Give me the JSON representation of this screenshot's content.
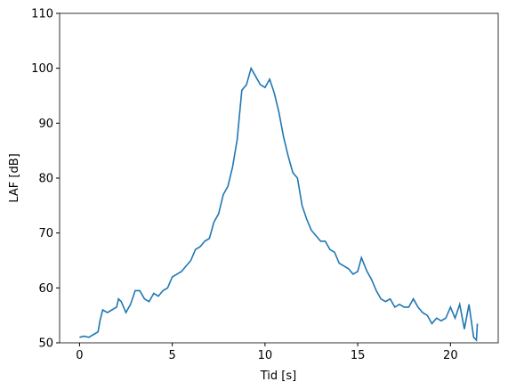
{
  "chart_data": {
    "type": "line",
    "x_label": "Tid [s]",
    "y_label": "LAF [dB]",
    "x": [
      0,
      0.25,
      0.5,
      0.75,
      1.0,
      1.1,
      1.25,
      1.5,
      1.75,
      2.0,
      2.1,
      2.25,
      2.5,
      2.75,
      3.0,
      3.25,
      3.5,
      3.75,
      4.0,
      4.25,
      4.5,
      4.75,
      5.0,
      5.25,
      5.5,
      5.75,
      6.0,
      6.25,
      6.5,
      6.75,
      7.0,
      7.25,
      7.5,
      7.75,
      8.0,
      8.25,
      8.5,
      8.75,
      9.0,
      9.25,
      9.5,
      9.75,
      10.0,
      10.25,
      10.5,
      10.75,
      11.0,
      11.25,
      11.5,
      11.75,
      12.0,
      12.25,
      12.5,
      12.75,
      13.0,
      13.25,
      13.5,
      13.75,
      14.0,
      14.25,
      14.5,
      14.75,
      15.0,
      15.2,
      15.5,
      15.75,
      16.0,
      16.25,
      16.5,
      16.75,
      17.0,
      17.25,
      17.5,
      17.75,
      18.0,
      18.25,
      18.5,
      18.75,
      19.0,
      19.25,
      19.5,
      19.75,
      20.0,
      20.25,
      20.5,
      20.75,
      21.0,
      21.25,
      21.4,
      21.45
    ],
    "series": [
      {
        "name": "LAF",
        "color": "#1f77b4",
        "values": [
          51,
          51.2,
          51,
          51.5,
          52,
          54,
          56,
          55.5,
          56,
          56.5,
          58,
          57.5,
          55.5,
          57,
          59.5,
          59.5,
          58,
          57.5,
          59,
          58.5,
          59.5,
          60,
          62,
          62.5,
          63,
          64,
          65,
          67,
          67.5,
          68.5,
          69,
          72,
          73.5,
          77,
          78.5,
          82,
          87,
          96,
          97,
          100,
          98.5,
          97,
          96.5,
          98,
          95.5,
          92,
          87.5,
          84,
          81,
          80,
          75,
          72.5,
          70.5,
          69.5,
          68.5,
          68.5,
          67,
          66.5,
          64.5,
          64,
          63.5,
          62.5,
          63,
          65.5,
          63,
          61.5,
          59.5,
          58,
          57.5,
          58,
          56.5,
          57,
          56.5,
          56.5,
          58,
          56.5,
          55.5,
          55,
          53.5,
          54.5,
          54,
          54.5,
          56.5,
          54.5,
          57,
          52.5,
          57,
          51,
          50.5,
          53.5
        ]
      }
    ],
    "xlim": [
      -1.075,
      22.575
    ],
    "ylim": [
      50,
      110
    ],
    "xticks": [
      0,
      5,
      10,
      15,
      20
    ],
    "yticks": [
      50,
      60,
      70,
      80,
      90,
      100,
      110
    ]
  }
}
